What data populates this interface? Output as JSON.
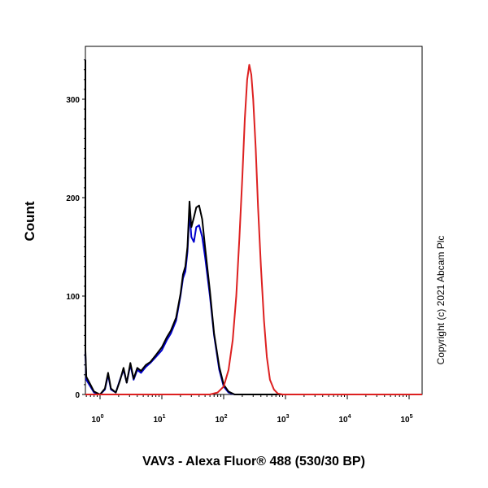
{
  "chart_data": {
    "type": "line",
    "xlabel": "VAV3 - Alexa Fluor® 488 (530/30 BP)",
    "ylabel": "Count",
    "x_scale": "log",
    "xlim": [
      0.5,
      250000
    ],
    "ylim": [
      0,
      350
    ],
    "y_ticks": [
      {
        "value": 0,
        "label": "0"
      },
      {
        "value": 100,
        "label": "100"
      },
      {
        "value": 200,
        "label": "200"
      },
      {
        "value": 300,
        "label": "300"
      }
    ],
    "x_ticks": [
      {
        "value": 1,
        "base": "10",
        "exp": "0"
      },
      {
        "value": 10,
        "base": "10",
        "exp": "1"
      },
      {
        "value": 100,
        "base": "10",
        "exp": "2"
      },
      {
        "value": 1000,
        "base": "10",
        "exp": "3"
      },
      {
        "value": 10000,
        "base": "10",
        "exp": "4"
      },
      {
        "value": 100000,
        "base": "10",
        "exp": "5"
      }
    ],
    "annotation": "Copyright (c) 2021 Abcam Plc",
    "series": [
      {
        "color": "#0000cc",
        "points": [
          [
            0.5,
            340
          ],
          [
            0.52,
            150
          ],
          [
            0.55,
            40
          ],
          [
            0.6,
            15
          ],
          [
            0.7,
            8
          ],
          [
            0.8,
            2
          ],
          [
            1.0,
            0
          ],
          [
            1.2,
            5
          ],
          [
            1.35,
            20
          ],
          [
            1.5,
            5
          ],
          [
            1.8,
            2
          ],
          [
            2.1,
            15
          ],
          [
            2.4,
            25
          ],
          [
            2.7,
            12
          ],
          [
            3.1,
            30
          ],
          [
            3.5,
            15
          ],
          [
            4.0,
            25
          ],
          [
            4.6,
            22
          ],
          [
            5.5,
            28
          ],
          [
            6.5,
            32
          ],
          [
            8,
            38
          ],
          [
            10,
            45
          ],
          [
            12,
            55
          ],
          [
            14,
            62
          ],
          [
            17,
            75
          ],
          [
            20,
            100
          ],
          [
            22,
            118
          ],
          [
            24,
            125
          ],
          [
            26,
            145
          ],
          [
            28,
            185
          ],
          [
            30,
            160
          ],
          [
            33,
            155
          ],
          [
            36,
            170
          ],
          [
            40,
            172
          ],
          [
            45,
            160
          ],
          [
            50,
            140
          ],
          [
            60,
            100
          ],
          [
            70,
            60
          ],
          [
            85,
            25
          ],
          [
            100,
            8
          ],
          [
            120,
            2
          ],
          [
            150,
            0
          ],
          [
            250000,
            0
          ]
        ]
      },
      {
        "color": "#000000",
        "points": [
          [
            0.5,
            340
          ],
          [
            0.52,
            150
          ],
          [
            0.55,
            45
          ],
          [
            0.6,
            18
          ],
          [
            0.7,
            10
          ],
          [
            0.8,
            3
          ],
          [
            1.0,
            0
          ],
          [
            1.2,
            6
          ],
          [
            1.35,
            22
          ],
          [
            1.5,
            6
          ],
          [
            1.8,
            2
          ],
          [
            2.1,
            14
          ],
          [
            2.4,
            27
          ],
          [
            2.7,
            12
          ],
          [
            3.1,
            32
          ],
          [
            3.5,
            16
          ],
          [
            4.0,
            27
          ],
          [
            4.6,
            24
          ],
          [
            5.5,
            30
          ],
          [
            6.5,
            33
          ],
          [
            8,
            40
          ],
          [
            10,
            48
          ],
          [
            12,
            58
          ],
          [
            14,
            65
          ],
          [
            17,
            78
          ],
          [
            20,
            102
          ],
          [
            22,
            122
          ],
          [
            24,
            130
          ],
          [
            26,
            150
          ],
          [
            28,
            196
          ],
          [
            30,
            170
          ],
          [
            33,
            180
          ],
          [
            36,
            190
          ],
          [
            40,
            192
          ],
          [
            45,
            178
          ],
          [
            50,
            150
          ],
          [
            60,
            105
          ],
          [
            70,
            62
          ],
          [
            85,
            28
          ],
          [
            100,
            10
          ],
          [
            120,
            3
          ],
          [
            150,
            0
          ],
          [
            250000,
            0
          ]
        ]
      },
      {
        "color": "#dd2020",
        "points": [
          [
            0.5,
            0
          ],
          [
            60,
            0
          ],
          [
            80,
            2
          ],
          [
            100,
            8
          ],
          [
            120,
            25
          ],
          [
            140,
            55
          ],
          [
            160,
            100
          ],
          [
            180,
            160
          ],
          [
            200,
            220
          ],
          [
            220,
            280
          ],
          [
            240,
            320
          ],
          [
            260,
            335
          ],
          [
            280,
            325
          ],
          [
            300,
            300
          ],
          [
            330,
            250
          ],
          [
            360,
            190
          ],
          [
            400,
            130
          ],
          [
            450,
            75
          ],
          [
            500,
            38
          ],
          [
            560,
            15
          ],
          [
            650,
            5
          ],
          [
            750,
            1
          ],
          [
            900,
            0
          ],
          [
            250000,
            0
          ]
        ]
      }
    ]
  }
}
